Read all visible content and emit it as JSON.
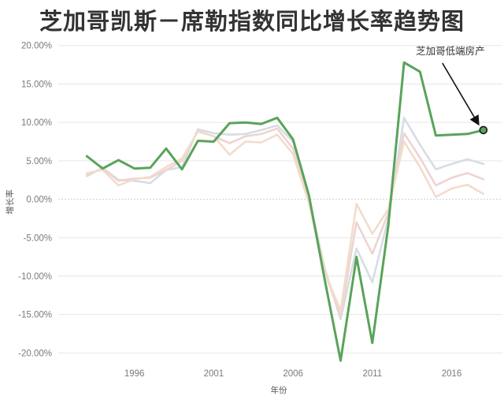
{
  "chart_data": {
    "type": "line",
    "title": "芝加哥凯斯－席勒指数同比增长率趋势图",
    "xlabel": "年份",
    "ylabel": "增长率",
    "x": [
      1993,
      1994,
      1995,
      1996,
      1997,
      1998,
      1999,
      2000,
      2001,
      2002,
      2003,
      2004,
      2005,
      2006,
      2007,
      2008,
      2009,
      2010,
      2011,
      2012,
      2013,
      2014,
      2015,
      2016,
      2017,
      2018
    ],
    "x_ticks": [
      1996,
      2001,
      2006,
      2011,
      2016
    ],
    "x_tick_labels": [
      "1996",
      "2001",
      "2006",
      "2011",
      "2016"
    ],
    "xlim": [
      1991.2,
      2019.2
    ],
    "ylim": [
      -21.5,
      21
    ],
    "y_ticks": [
      20,
      15,
      10,
      5,
      0,
      -5,
      -10,
      -15,
      -20
    ],
    "y_tick_labels": [
      "20.00%",
      "15.00%",
      "10.00%",
      "5.00%",
      "0.00%",
      "-5.00%",
      "-10.00%",
      "-15.00%",
      "-20.00%"
    ],
    "grid": true,
    "series": [
      {
        "color": "#5aa35a",
        "highlight": true,
        "values": [
          5.6,
          4.0,
          5.1,
          4.0,
          4.1,
          6.6,
          3.9,
          7.6,
          7.5,
          9.9,
          10.0,
          9.8,
          10.6,
          7.8,
          0.5,
          -10.5,
          -21.0,
          -7.5,
          -18.7,
          -3.5,
          17.8,
          16.6,
          8.3,
          8.4,
          8.5,
          9.0
        ]
      },
      {
        "color": "#d6dde3",
        "highlight": false,
        "values": [
          3.0,
          4.1,
          2.5,
          2.4,
          2.1,
          3.8,
          4.2,
          9.1,
          8.6,
          8.4,
          8.5,
          9.0,
          9.6,
          7.5,
          0.2,
          -9.0,
          -15.6,
          -6.4,
          -10.8,
          -2.5,
          10.6,
          7.1,
          3.9,
          4.6,
          5.2,
          4.6
        ]
      },
      {
        "color": "#efd3d3",
        "highlight": false,
        "values": [
          3.2,
          4.0,
          2.4,
          2.7,
          2.8,
          3.8,
          5.0,
          8.9,
          8.2,
          7.3,
          8.2,
          8.5,
          9.2,
          6.6,
          0.0,
          -9.5,
          -15.2,
          -3.0,
          -7.1,
          -1.8,
          8.6,
          5.4,
          1.8,
          2.8,
          3.4,
          2.6
        ]
      },
      {
        "color": "#f2dccb",
        "highlight": false,
        "values": [
          3.4,
          3.8,
          1.8,
          2.6,
          2.9,
          4.2,
          5.3,
          8.8,
          8.2,
          5.8,
          7.5,
          7.4,
          8.4,
          5.9,
          -0.5,
          -9.5,
          -14.5,
          -0.6,
          -4.5,
          -1.3,
          7.5,
          4.2,
          0.3,
          1.4,
          1.9,
          0.7
        ]
      }
    ],
    "annotation": {
      "text": "芝加哥低端房产",
      "x": 2018,
      "y": 9.0
    }
  }
}
